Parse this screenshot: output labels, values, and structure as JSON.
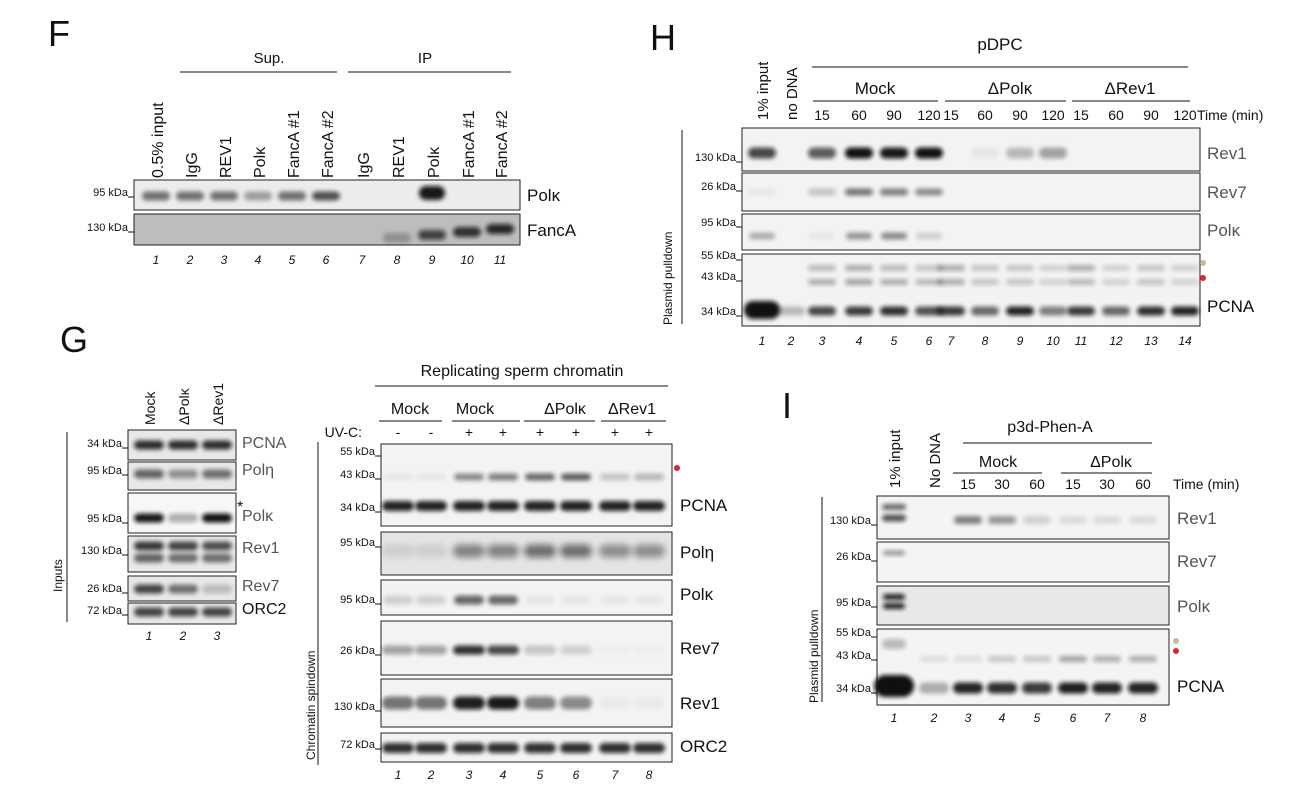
{
  "panel_F": {
    "letter": "F",
    "group_sup": "Sup.",
    "group_ip": "IP",
    "lanes": [
      "0.5% input",
      "IgG",
      "REV1",
      "Polκ",
      "FancA #1",
      "FancA #2",
      "IgG",
      "REV1",
      "Polκ",
      "FancA #1",
      "FancA #2"
    ],
    "lane_numbers": [
      "1",
      "2",
      "3",
      "4",
      "5",
      "6",
      "7",
      "8",
      "9",
      "10",
      "11"
    ],
    "markers": [
      "95 kDa",
      "130 kDa"
    ],
    "blots": [
      "Polκ",
      "FancA"
    ]
  },
  "panel_G": {
    "letter": "G",
    "inputs_lanes": [
      "Mock",
      "ΔPolκ",
      "ΔRev1"
    ],
    "inputs_markers": [
      "34 kDa",
      "95 kDa",
      "95 kDa",
      "130 kDa",
      "26 kDa",
      "72 kDa"
    ],
    "inputs_blots": [
      "PCNA",
      "Polη",
      "Polκ",
      "Rev1",
      "Rev7",
      "ORC2"
    ],
    "asterisk": "*",
    "inputs_side": "Inputs",
    "inputs_lane_numbers": [
      "1",
      "2",
      "3"
    ],
    "title": "Replicating sperm chromatin",
    "conditions": [
      "Mock",
      "Mock",
      "ΔPolκ",
      "ΔRev1"
    ],
    "uvc_label": "UV-C:",
    "uvc_values": [
      "-",
      "-",
      "+",
      "+",
      "+",
      "+",
      "+",
      "+"
    ],
    "spin_markers": [
      "55 kDa",
      "43 kDa",
      "34 kDa",
      "95 kDa",
      "95 kDa",
      "26 kDa",
      "130 kDa",
      "72 kDa"
    ],
    "spin_blots": [
      "PCNA",
      "Polη",
      "Polκ",
      "Rev7",
      "Rev1",
      "ORC2"
    ],
    "spin_side": "Chromatin spindown",
    "spin_lane_numbers": [
      "1",
      "2",
      "3",
      "4",
      "5",
      "6",
      "7",
      "8"
    ]
  },
  "panel_H": {
    "letter": "H",
    "title": "pDPC",
    "top_lanes": [
      "1% input",
      "no DNA"
    ],
    "conditions": [
      "Mock",
      "ΔPolκ",
      "ΔRev1"
    ],
    "times": [
      "15",
      "60",
      "90",
      "120",
      "15",
      "60",
      "90",
      "120",
      "15",
      "60",
      "90",
      "120"
    ],
    "time_label": "Time (min)",
    "markers": [
      "130 kDa",
      "26 kDa",
      "95 kDa",
      "55 kDa",
      "43 kDa",
      "34 kDa"
    ],
    "blots": [
      "Rev1",
      "Rev7",
      "Polκ",
      "PCNA"
    ],
    "side": "Plasmid pulldown",
    "lane_numbers": [
      "1",
      "2",
      "3",
      "4",
      "5",
      "6",
      "7",
      "8",
      "9",
      "10",
      "11",
      "12",
      "13",
      "14"
    ]
  },
  "panel_I": {
    "letter": "I",
    "title": "p3d-Phen-A",
    "top_lanes": [
      "1% input",
      "No DNA"
    ],
    "conditions": [
      "Mock",
      "ΔPolκ"
    ],
    "times": [
      "15",
      "30",
      "60",
      "15",
      "30",
      "60"
    ],
    "time_label": "Time (min)",
    "markers": [
      "130 kDa",
      "26 kDa",
      "95 kDa",
      "55 kDa",
      "43 kDa",
      "34 kDa"
    ],
    "blots": [
      "Rev1",
      "Rev7",
      "Polκ",
      "PCNA"
    ],
    "side": "Plasmid pulldown",
    "lane_numbers": [
      "1",
      "2",
      "3",
      "4",
      "5",
      "6",
      "7",
      "8"
    ]
  },
  "colors": {
    "ink": "#111111",
    "grey_label": "#555555",
    "dot_red": "#e0242b",
    "dot_tan": "#c9b99a"
  }
}
